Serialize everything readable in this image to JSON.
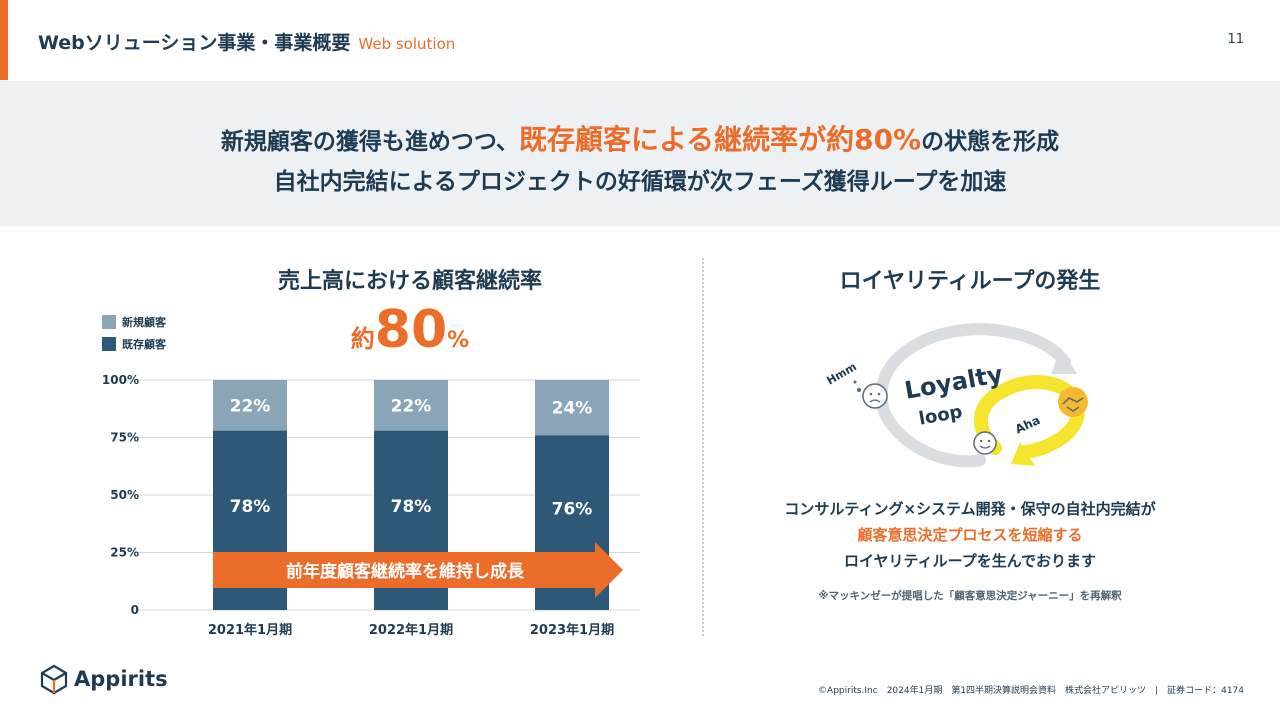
{
  "header": {
    "title": "Webソリューション事業・事業概要",
    "subtitle": "Web solution",
    "page_number": "11"
  },
  "banner": {
    "line1_pre": "新規顧客の獲得も進めつつ、",
    "line1_highlight": "既存顧客による継続率が約80%",
    "line1_post": "の状態を形成",
    "line2": "自社内完結によるプロジェクトの好循環が次フェーズ獲得ループを加速"
  },
  "left": {
    "title": "売上高における顧客継続率",
    "big_prefix": "約",
    "big_number": "80",
    "big_suffix": "%",
    "arrow_label": "前年度顧客継続率を維持し成長"
  },
  "chart_data": {
    "type": "bar",
    "stacked": true,
    "categories": [
      "2021年1月期",
      "2022年1月期",
      "2023年1月期"
    ],
    "series": [
      {
        "name": "既存顧客",
        "values": [
          78,
          78,
          76
        ],
        "labels": [
          "78%",
          "78%",
          "76%"
        ],
        "color": "#2e5878"
      },
      {
        "name": "新規顧客",
        "values": [
          22,
          22,
          24
        ],
        "labels": [
          "22%",
          "22%",
          "24%"
        ],
        "color": "#8aa4b8"
      }
    ],
    "ylim": [
      0,
      100
    ],
    "yticks": [
      "0",
      "25%",
      "50%",
      "75%",
      "100%"
    ],
    "ytick_values": [
      0,
      25,
      50,
      75,
      100
    ],
    "grid": true,
    "legend": "top-left"
  },
  "right": {
    "title": "ロイヤリティループの発生",
    "graphic": {
      "word1": "Loyalty",
      "word2": "loop",
      "hmm": "Hmm",
      "aha": "Aha"
    },
    "desc_line1": "コンサルティング×システム開発・保守の自社内完結が",
    "desc_line2": "顧客意思決定プロセスを短縮する",
    "desc_line3": "ロイヤリティループを生んでおります",
    "note": "※マッキンゼーが提唱した「顧客意思決定ジャーニー」を再解釈"
  },
  "footer": {
    "logo": "Appirits",
    "text": "©Appirits.Inc　2024年1月期　第1四半期決算説明会資料　株式会社アピリッツ　|　証券コード：4174"
  },
  "colors": {
    "accent": "#ec6d2a",
    "navy": "#1f3b52",
    "existing": "#2e5878",
    "new": "#8aa4b8",
    "banner_bg": "#eef1f4",
    "loop_yellow": "#f5e52e"
  }
}
